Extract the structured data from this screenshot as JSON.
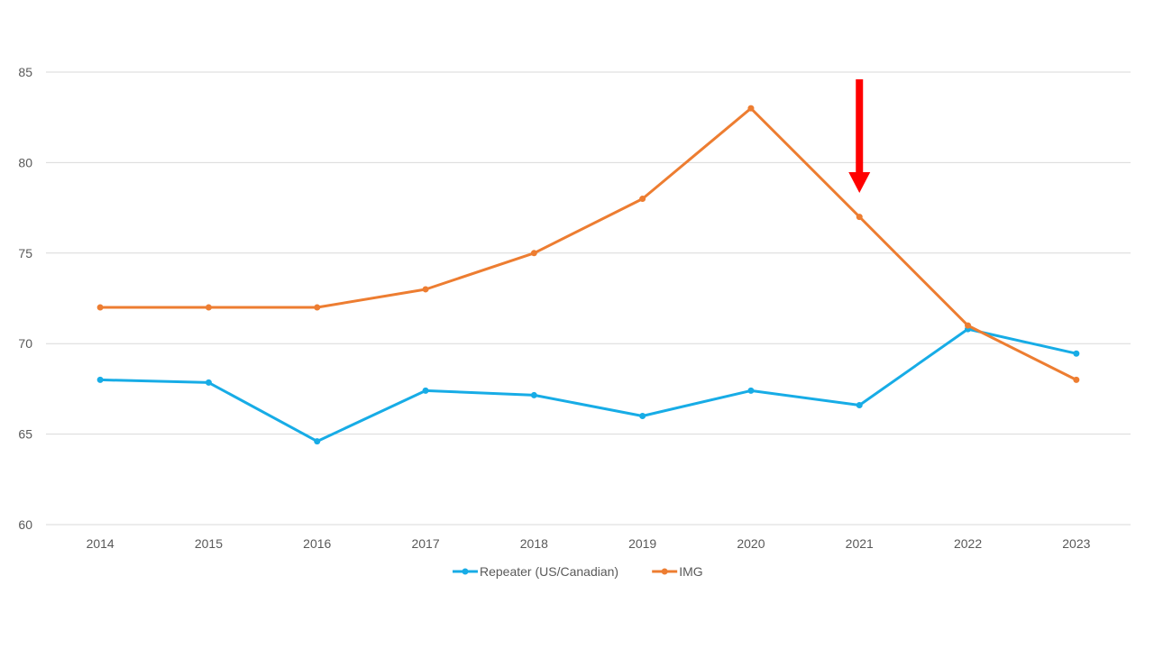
{
  "chart_data": {
    "type": "line",
    "categories": [
      "2014",
      "2015",
      "2016",
      "2017",
      "2018",
      "2019",
      "2020",
      "2021",
      "2022",
      "2023"
    ],
    "ylim": [
      60,
      85
    ],
    "yticks": [
      60,
      65,
      70,
      75,
      80,
      85
    ],
    "grid": true,
    "legend_position": "bottom-center",
    "series": [
      {
        "name": "Repeater (US/Canadian)",
        "color": "#17ACE6",
        "values": [
          68.0,
          67.85,
          64.6,
          67.4,
          67.15,
          66.0,
          67.4,
          66.6,
          70.8,
          69.45
        ]
      },
      {
        "name": "IMG",
        "color": "#ED7D31",
        "values": [
          72,
          72,
          72,
          73,
          75,
          78,
          83,
          77,
          71,
          68
        ]
      }
    ],
    "annotations": [
      {
        "type": "arrow",
        "direction": "down",
        "at_category": "2021",
        "color": "#FF0000"
      }
    ]
  }
}
